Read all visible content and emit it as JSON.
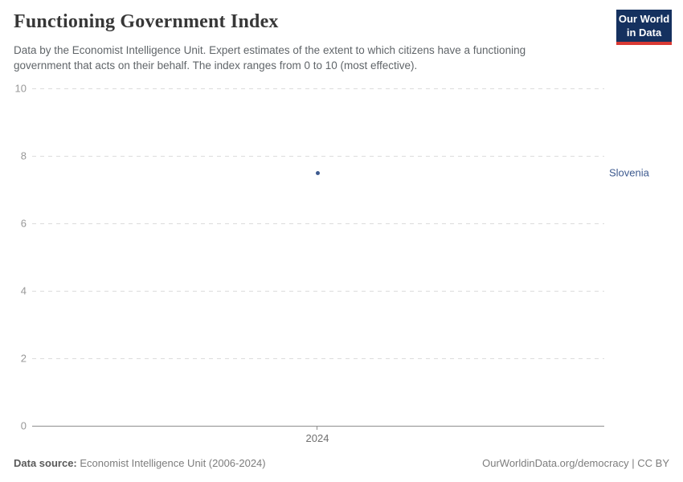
{
  "header": {
    "title": "Functioning Government Index",
    "subtitle_lines": [
      "Data by the Economist Intelligence Unit. Expert estimates of the extent to which citizens have a functioning",
      "government that acts on their behalf. The index ranges from 0 to 10 (most effective)."
    ],
    "logo": {
      "line1": "Our World",
      "line2": "in Data",
      "bg_color": "#15315f",
      "accent_color": "#d93a34"
    }
  },
  "chart_data": {
    "type": "scatter",
    "title": "Functioning Government Index",
    "series": [
      {
        "name": "Slovenia",
        "color": "#3d5a8f",
        "points": [
          {
            "x": 2024,
            "y": 7.5
          }
        ]
      }
    ],
    "x_ticks": [
      "2024"
    ],
    "y_ticks": [
      0,
      2,
      4,
      6,
      8,
      10
    ],
    "ylim": [
      0,
      10
    ],
    "xlabel": "",
    "ylabel": "",
    "grid": "horizontal-dashed",
    "legend_position": "entity-label-right",
    "colors": {
      "gridline": "#dcdcdc",
      "axis": "#8f8f8f",
      "tick_label": "#989898"
    }
  },
  "footer": {
    "source_label": "Data source:",
    "source_value": "Economist Intelligence Unit (2006-2024)",
    "attribution": "OurWorldinData.org/democracy | CC BY"
  }
}
